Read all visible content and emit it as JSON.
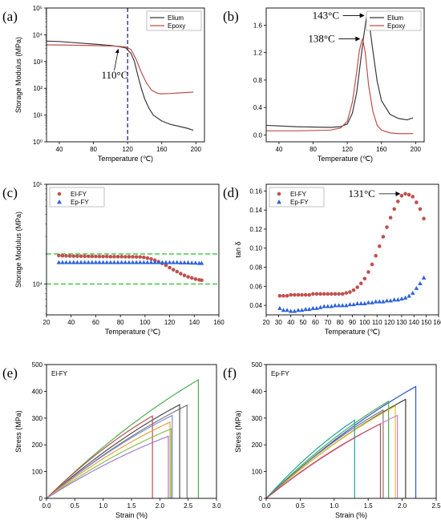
{
  "chart_data": [
    {
      "panel": "(a)",
      "type": "line",
      "xlabel": "Temperature (℃)",
      "ylabel": "Storage Modulus (MPa)",
      "xlim": [
        25,
        210
      ],
      "xticks": [
        40,
        80,
        120,
        160,
        200
      ],
      "yscale": "log",
      "ylim": [
        1,
        100000
      ],
      "yticks": [
        1,
        10,
        100,
        1000,
        10000,
        100000
      ],
      "yticklabels": [
        "10⁰",
        "10¹",
        "10²",
        "10³",
        "10⁴",
        "10⁵"
      ],
      "legend": "top-right",
      "series": [
        {
          "name": "Elium",
          "color": "#3a3a3a",
          "x": [
            25,
            40,
            60,
            80,
            100,
            110,
            118,
            124,
            128,
            132,
            136,
            140,
            145,
            150,
            160,
            170,
            180,
            190,
            197
          ],
          "y": [
            5800,
            5600,
            5000,
            4500,
            4000,
            3600,
            3200,
            2000,
            1000,
            300,
            100,
            40,
            18,
            10,
            6,
            4.5,
            3.8,
            3.2,
            2.7
          ]
        },
        {
          "name": "Epoxy",
          "color": "#c0504d",
          "x": [
            25,
            40,
            60,
            80,
            100,
            110,
            118,
            124,
            130,
            136,
            142,
            148,
            155,
            160,
            170,
            180,
            190,
            197
          ],
          "y": [
            4200,
            4150,
            4050,
            3950,
            3800,
            3700,
            3500,
            2800,
            1200,
            400,
            160,
            85,
            65,
            62,
            64,
            67,
            70,
            72
          ]
        }
      ],
      "vline": {
        "x": 120,
        "color": "#3b2e91"
      },
      "annotations": [
        {
          "text": "110°C",
          "x": 110,
          "y": 3700
        }
      ]
    },
    {
      "panel": "(b)",
      "type": "line",
      "xlabel": "Temperature (℃)",
      "ylabel": "",
      "xlim": [
        25,
        210
      ],
      "xticks": [
        40,
        80,
        120,
        160,
        200
      ],
      "ylim": [
        -0.1,
        1.85
      ],
      "yticks": [
        0.0,
        0.4,
        0.8,
        1.2,
        1.6
      ],
      "yticklabels": [
        "0.0",
        "0.4",
        "0.8",
        "1.2",
        "1.6"
      ],
      "legend": "top-right",
      "series": [
        {
          "name": "Elium",
          "color": "#3a3a3a",
          "x": [
            25,
            60,
            100,
            112,
            120,
            126,
            131,
            135,
            139,
            142,
            143,
            146,
            150,
            155,
            160,
            170,
            180,
            190,
            197
          ],
          "y": [
            0.14,
            0.12,
            0.11,
            0.12,
            0.16,
            0.32,
            0.62,
            1.02,
            1.42,
            1.68,
            1.74,
            1.6,
            1.22,
            0.78,
            0.5,
            0.3,
            0.24,
            0.22,
            0.25
          ]
        },
        {
          "name": "Epoxy",
          "color": "#c0504d",
          "x": [
            25,
            60,
            100,
            112,
            120,
            126,
            131,
            134,
            137,
            138,
            141,
            145,
            150,
            155,
            160,
            170,
            180,
            190,
            197
          ],
          "y": [
            0.06,
            0.06,
            0.07,
            0.1,
            0.2,
            0.48,
            0.92,
            1.22,
            1.38,
            1.4,
            1.2,
            0.72,
            0.34,
            0.14,
            0.07,
            0.03,
            0.02,
            0.02,
            0.02
          ]
        }
      ],
      "annotations": [
        {
          "text": "143°C",
          "x": 143,
          "y": 1.74
        },
        {
          "text": "138°C",
          "x": 138,
          "y": 1.4
        }
      ]
    },
    {
      "panel": "(c)",
      "type": "scatter",
      "xlabel": "Temperature (℃)",
      "ylabel": "Storage Modulus (MPa)",
      "xlim": [
        20,
        160
      ],
      "xticks": [
        20,
        40,
        60,
        80,
        100,
        120,
        140,
        160
      ],
      "yscale": "log",
      "ylim": [
        4900,
        100000
      ],
      "yticks": [
        10000,
        100000
      ],
      "yticklabels": [
        "10⁴",
        "10⁵"
      ],
      "legend": "top-left",
      "hlines": [
        {
          "y": 20000,
          "color": "#3cc23c"
        },
        {
          "y": 10000,
          "color": "#3cc23c"
        }
      ],
      "series": [
        {
          "name": "El-FY",
          "color": "#c0504d",
          "marker": "circle",
          "x": [
            30,
            33,
            36,
            39,
            42,
            45,
            48,
            51,
            54,
            57,
            60,
            63,
            66,
            69,
            72,
            75,
            78,
            81,
            84,
            87,
            90,
            93,
            96,
            99,
            102,
            105,
            108,
            111,
            114,
            117,
            120,
            123,
            126,
            129,
            132,
            135,
            138,
            141,
            144,
            146
          ],
          "y": [
            19300,
            19200,
            19150,
            19100,
            19050,
            19000,
            19000,
            18950,
            18950,
            18900,
            18900,
            18850,
            18850,
            18850,
            18800,
            18800,
            18800,
            18800,
            18750,
            18750,
            18750,
            18700,
            18700,
            18500,
            18200,
            17800,
            17300,
            16700,
            16100,
            15400,
            14600,
            13900,
            13300,
            12700,
            12200,
            11800,
            11500,
            11200,
            11000,
            10900
          ]
        },
        {
          "name": "Ep-FY",
          "color": "#2d63d8",
          "marker": "triangle",
          "x": [
            30,
            33,
            36,
            39,
            42,
            45,
            48,
            51,
            54,
            57,
            60,
            63,
            66,
            69,
            72,
            75,
            78,
            81,
            84,
            87,
            90,
            93,
            96,
            99,
            102,
            105,
            108,
            111,
            114,
            117,
            120,
            123,
            126,
            129,
            132,
            135,
            138,
            141,
            144,
            146
          ],
          "y": [
            16500,
            16500,
            16500,
            16500,
            16500,
            16500,
            16500,
            16500,
            16500,
            16500,
            16500,
            16500,
            16500,
            16500,
            16500,
            16500,
            16500,
            16500,
            16500,
            16500,
            16500,
            16500,
            16500,
            16500,
            16500,
            16500,
            16500,
            16500,
            16500,
            16500,
            16500,
            16500,
            16500,
            16400,
            16400,
            16400,
            16300,
            16300,
            16200,
            16200
          ]
        }
      ]
    },
    {
      "panel": "(d)",
      "type": "scatter",
      "xlabel": "Temperature (℃)",
      "ylabel": "tan δ",
      "xlim": [
        20,
        160
      ],
      "xticks": [
        20,
        30,
        40,
        50,
        60,
        70,
        80,
        90,
        100,
        110,
        120,
        130,
        140,
        150,
        160
      ],
      "ylim": [
        0.03,
        0.167
      ],
      "yticks": [
        0.04,
        0.06,
        0.08,
        0.1,
        0.12,
        0.14,
        0.16
      ],
      "yticklabels": [
        "0.04",
        "0.06",
        "0.08",
        "0.10",
        "0.12",
        "0.14",
        "0.16"
      ],
      "legend": "top-left",
      "series": [
        {
          "name": "El-FY",
          "color": "#c0504d",
          "marker": "circle",
          "x": [
            31,
            34,
            37,
            40,
            43,
            46,
            49,
            52,
            55,
            58,
            61,
            64,
            67,
            70,
            73,
            76,
            79,
            82,
            85,
            88,
            91,
            94,
            97,
            100,
            103,
            106,
            109,
            112,
            115,
            118,
            121,
            124,
            127,
            130,
            133,
            136,
            139,
            142,
            145,
            148
          ],
          "y": [
            0.05,
            0.05,
            0.05,
            0.051,
            0.051,
            0.051,
            0.051,
            0.051,
            0.051,
            0.052,
            0.052,
            0.052,
            0.052,
            0.052,
            0.052,
            0.052,
            0.052,
            0.052,
            0.053,
            0.054,
            0.056,
            0.059,
            0.063,
            0.068,
            0.075,
            0.083,
            0.092,
            0.102,
            0.112,
            0.122,
            0.132,
            0.141,
            0.149,
            0.155,
            0.157,
            0.156,
            0.154,
            0.148,
            0.141,
            0.131
          ]
        },
        {
          "name": "Ep-FY",
          "color": "#2d63d8",
          "marker": "triangle",
          "x": [
            31,
            34,
            37,
            40,
            43,
            46,
            49,
            52,
            55,
            58,
            61,
            64,
            67,
            70,
            73,
            76,
            79,
            82,
            85,
            88,
            91,
            94,
            97,
            100,
            103,
            106,
            109,
            112,
            115,
            118,
            121,
            124,
            127,
            130,
            133,
            136,
            139,
            142,
            145,
            148
          ],
          "y": [
            0.037,
            0.035,
            0.035,
            0.034,
            0.034,
            0.035,
            0.035,
            0.036,
            0.036,
            0.037,
            0.037,
            0.038,
            0.039,
            0.039,
            0.039,
            0.04,
            0.04,
            0.04,
            0.04,
            0.041,
            0.041,
            0.042,
            0.042,
            0.042,
            0.043,
            0.043,
            0.044,
            0.044,
            0.044,
            0.045,
            0.045,
            0.046,
            0.046,
            0.047,
            0.048,
            0.05,
            0.053,
            0.058,
            0.063,
            0.069
          ]
        }
      ],
      "annotations": [
        {
          "text": "131°C",
          "x": 131,
          "y": 0.157
        }
      ]
    },
    {
      "panel": "(e)",
      "type": "line",
      "title": "El-FY",
      "xlabel": "Strain (%)",
      "ylabel": "Stress (MPa)",
      "xlim": [
        0,
        3.0
      ],
      "xticks": [
        0.0,
        0.5,
        1.0,
        1.5,
        2.0,
        2.5,
        3.0
      ],
      "xticklabels": [
        "0.0",
        "0.5",
        "1.0",
        "1.5",
        "2.0",
        "2.5",
        "3.0"
      ],
      "ylim": [
        0,
        500
      ],
      "yticks": [
        0,
        100,
        200,
        300,
        400,
        500
      ],
      "series": [
        {
          "color": "#4caf50",
          "failure_strain": 2.68,
          "peak_stress": 443
        },
        {
          "color": "#7a7a7a",
          "failure_strain": 2.48,
          "peak_stress": 348
        },
        {
          "color": "#505050",
          "failure_strain": 2.35,
          "peak_stress": 350
        },
        {
          "color": "#7b8cde",
          "failure_strain": 2.22,
          "peak_stress": 310
        },
        {
          "color": "#c0504d",
          "failure_strain": 1.87,
          "peak_stress": 308
        },
        {
          "color": "#e6a23c",
          "failure_strain": 2.18,
          "peak_stress": 285
        },
        {
          "color": "#8bc34a",
          "failure_strain": 2.2,
          "peak_stress": 260
        },
        {
          "color": "#a37bd6",
          "failure_strain": 2.15,
          "peak_stress": 232
        }
      ]
    },
    {
      "panel": "(f)",
      "type": "line",
      "title": "Ep-FY",
      "xlabel": "Strain (%)",
      "ylabel": "Stress (MPa)",
      "xlim": [
        0,
        2.5
      ],
      "xticks": [
        0.0,
        0.5,
        1.0,
        1.5,
        2.0,
        2.5
      ],
      "xticklabels": [
        "0.0",
        "0.5",
        "1.0",
        "1.5",
        "2.0",
        "2.5"
      ],
      "ylim": [
        0,
        500
      ],
      "yticks": [
        0,
        100,
        200,
        300,
        400,
        500
      ],
      "series": [
        {
          "color": "#2d4fd8",
          "failure_strain": 2.2,
          "peak_stress": 418
        },
        {
          "color": "#404040",
          "failure_strain": 2.05,
          "peak_stress": 370
        },
        {
          "color": "#4caf50",
          "failure_strain": 1.8,
          "peak_stress": 363
        },
        {
          "color": "#e6c229",
          "failure_strain": 1.9,
          "peak_stress": 345
        },
        {
          "color": "#7a7a7a",
          "failure_strain": 1.72,
          "peak_stress": 330
        },
        {
          "color": "#d47fd6",
          "failure_strain": 1.93,
          "peak_stress": 310
        },
        {
          "color": "#1fa2a2",
          "failure_strain": 1.3,
          "peak_stress": 292
        },
        {
          "color": "#c0504d",
          "failure_strain": 1.68,
          "peak_stress": 278
        }
      ]
    }
  ]
}
